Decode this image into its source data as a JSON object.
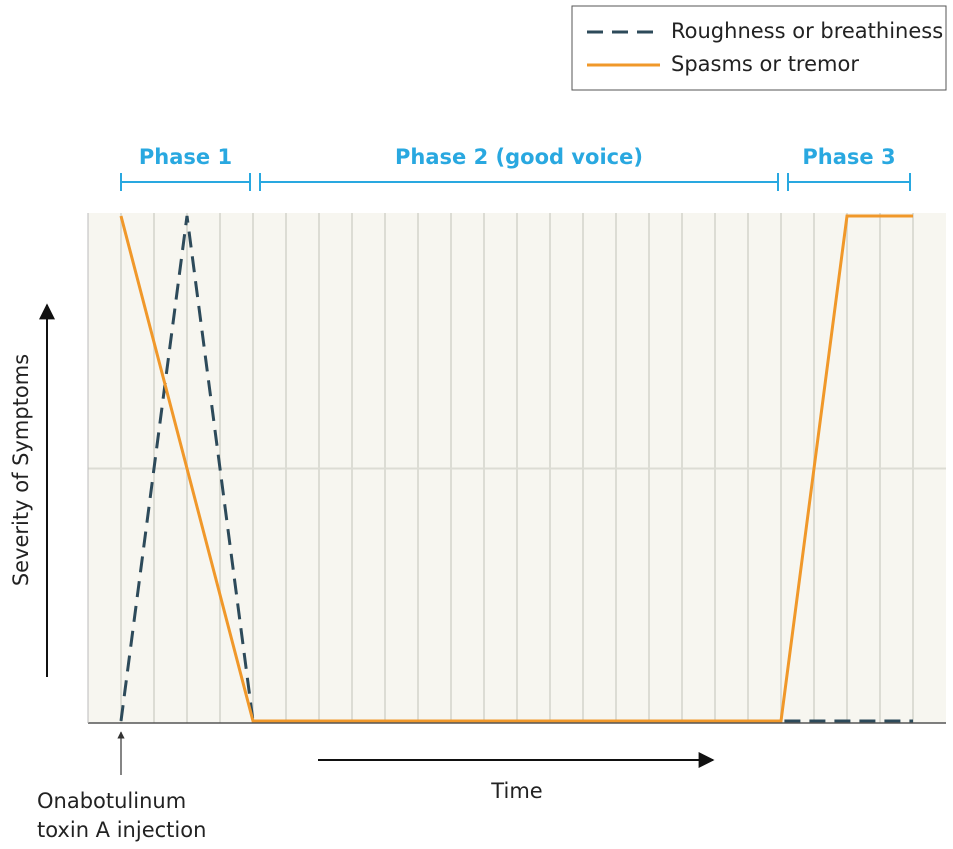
{
  "chart_data": {
    "type": "line",
    "y_label": "Severity of Symptoms",
    "x_label": "Time",
    "annotation": [
      "Onabotulinum",
      "toxin A injection"
    ],
    "annotation_x": 0,
    "phases": [
      {
        "label": "Phase 1",
        "x": [
          0,
          4
        ]
      },
      {
        "label": "Phase 2 (good voice)",
        "x": [
          4,
          20
        ]
      },
      {
        "label": "Phase 3",
        "x": [
          20,
          24
        ]
      }
    ],
    "phase_color": "#29a8e0",
    "series": [
      {
        "name": "Roughness or breathiness",
        "color": "#2d4a5a",
        "dashed": true,
        "x": [
          0,
          2,
          4,
          24
        ],
        "values": [
          0,
          1,
          0,
          0
        ]
      },
      {
        "name": "Spasms or tremor",
        "color": "#f0982a",
        "dashed": false,
        "x": [
          0,
          4,
          20,
          22,
          24
        ],
        "values": [
          1,
          0,
          0,
          1,
          1
        ]
      }
    ],
    "xlim": [
      -1,
      25
    ],
    "ylim": [
      0,
      1
    ],
    "xticks": [
      0,
      1,
      2,
      3,
      4,
      5,
      6,
      7,
      8,
      9,
      10,
      11,
      12,
      13,
      14,
      15,
      16,
      17,
      18,
      19,
      20,
      21,
      22,
      23,
      24
    ],
    "yticks": [
      0.5
    ],
    "grid": true
  }
}
